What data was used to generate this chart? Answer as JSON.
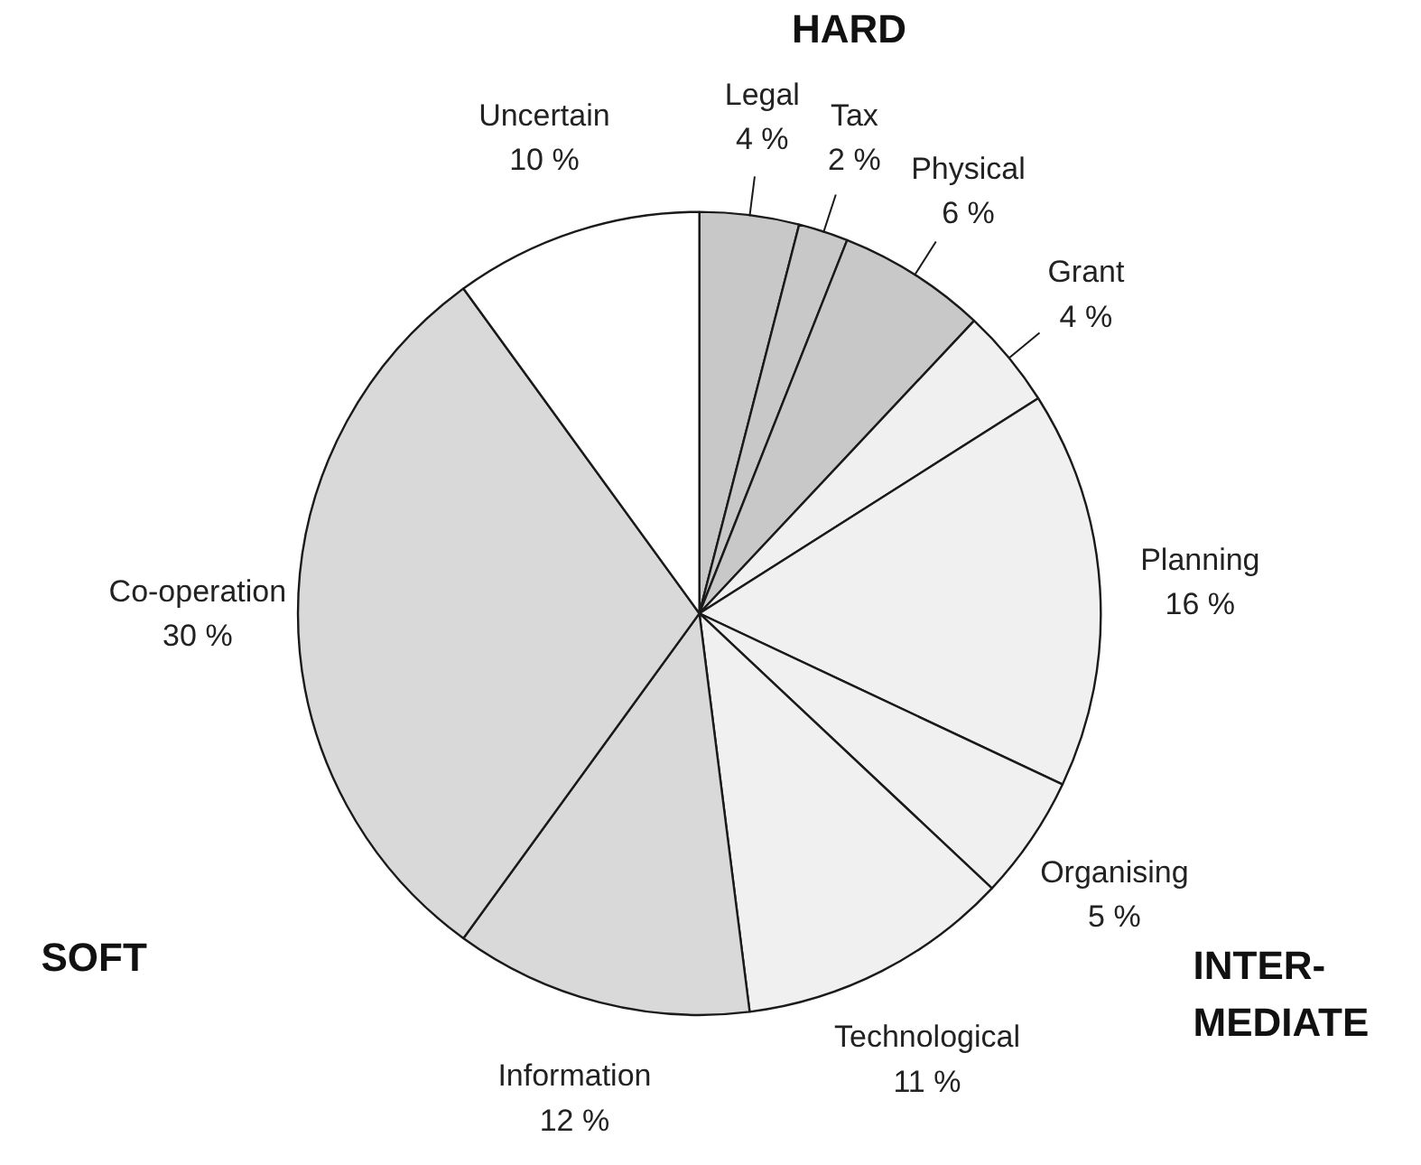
{
  "chart_data": {
    "type": "pie",
    "categories": [
      "Legal",
      "Tax",
      "Physical",
      "Grant",
      "Planning",
      "Organising",
      "Technological",
      "Information",
      "Co-operation",
      "Uncertain"
    ],
    "values": [
      4,
      2,
      6,
      4,
      16,
      5,
      11,
      12,
      30,
      10
    ],
    "colors": [
      "#c8c8c8",
      "#c8c8c8",
      "#c8c8c8",
      "#f0f0f0",
      "#f0f0f0",
      "#f0f0f0",
      "#f0f0f0",
      "#d9d9d9",
      "#d9d9d9",
      "#ffffff"
    ],
    "value_labels": [
      "4 %",
      "2 %",
      "6 %",
      "4 %",
      "16 %",
      "5 %",
      "11 %",
      "12 %",
      "30 %",
      "10 %"
    ],
    "annotations": [
      "HARD",
      "SOFT",
      "INTER-\nMEDIATE"
    ]
  }
}
